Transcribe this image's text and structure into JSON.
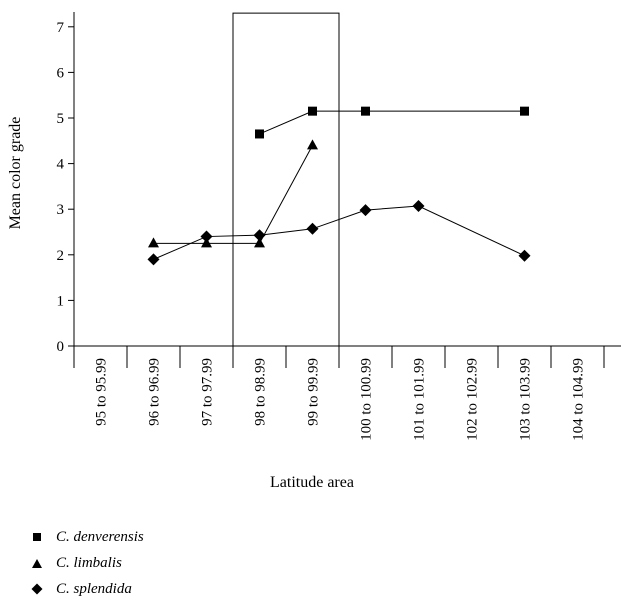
{
  "chart_data": {
    "type": "line",
    "xlabel": "Latitude area",
    "ylabel": "Mean color grade",
    "ylim": [
      0,
      7
    ],
    "yticks": [
      "0",
      "1",
      "2",
      "3",
      "4",
      "5",
      "6",
      "7"
    ],
    "categories": [
      "95 to 95.99",
      "96 to 96.99",
      "97 to 97.99",
      "98 to 98.99",
      "99 to 99.99",
      "100 to 100.99",
      "101 to 101.99",
      "102 to 102.99",
      "103 to 103.99",
      "104 to 104.99"
    ],
    "highlight": {
      "from_category": "98 to 98.99",
      "to_category": "99 to 99.99",
      "ylim": [
        0,
        7.3
      ]
    },
    "series": [
      {
        "name": "C. denverensis",
        "marker": "square",
        "values": [
          null,
          null,
          null,
          4.65,
          5.15,
          5.15,
          null,
          null,
          5.15,
          null
        ]
      },
      {
        "name": "C. limbalis",
        "marker": "triangle",
        "values": [
          null,
          2.25,
          2.25,
          2.25,
          4.4,
          null,
          null,
          null,
          null,
          null
        ]
      },
      {
        "name": "C. splendida",
        "marker": "diamond",
        "values": [
          null,
          1.9,
          2.4,
          2.43,
          2.57,
          2.98,
          3.07,
          null,
          1.98,
          null
        ]
      }
    ],
    "grid": false,
    "legend_position": "bottom-left"
  }
}
